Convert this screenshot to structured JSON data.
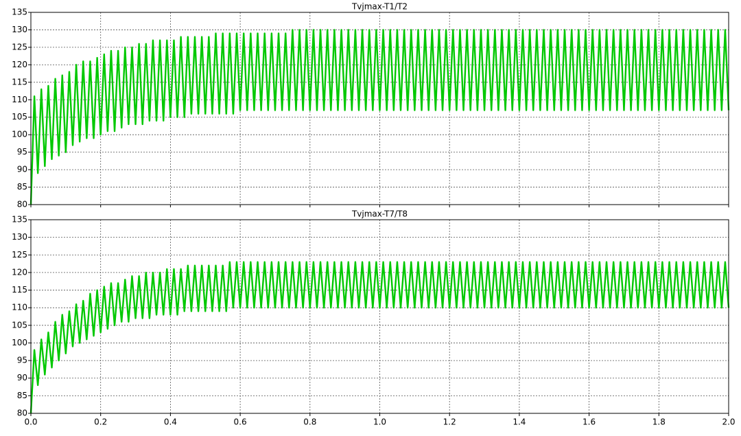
{
  "chart_data": [
    {
      "type": "line",
      "title": "Tvjmax-T1/T2",
      "color": "#00c800",
      "xlim": [
        0,
        2
      ],
      "ylim": [
        80,
        135
      ],
      "xticks": [
        0,
        0.2,
        0.4,
        0.6,
        0.8,
        1,
        1.2,
        1.4,
        1.6,
        1.8,
        2
      ],
      "yticks": [
        80,
        85,
        90,
        95,
        100,
        105,
        110,
        115,
        120,
        125,
        130,
        135
      ],
      "grid": true,
      "x": [
        0,
        0.01,
        0.02,
        0.03,
        0.04,
        0.05,
        0.06,
        0.07,
        0.08,
        0.09,
        0.1,
        0.11,
        0.12,
        0.13,
        0.14,
        0.15,
        0.16,
        0.17,
        0.18,
        0.19,
        0.2,
        0.21,
        0.22,
        0.23,
        0.24,
        0.25,
        0.26,
        0.27,
        0.28,
        0.29,
        0.3,
        0.31,
        0.32,
        0.33,
        0.34,
        0.35,
        0.36,
        0.37,
        0.38,
        0.39,
        0.4,
        0.41,
        0.42,
        0.43,
        0.44,
        0.45,
        0.46,
        0.47,
        0.48,
        0.49,
        0.5,
        0.51,
        0.52,
        0.53,
        0.54,
        0.55,
        0.56,
        0.57,
        0.58,
        0.59,
        0.6,
        0.61,
        0.62,
        0.63,
        0.64,
        0.65,
        0.66,
        0.67,
        0.68,
        0.69,
        0.7,
        0.71,
        0.72,
        0.73,
        0.74,
        0.75,
        0.76,
        0.77,
        0.78,
        0.79,
        0.8,
        0.81,
        0.82,
        0.83,
        0.84,
        0.85,
        0.86,
        0.87,
        0.88,
        0.89,
        0.9,
        0.91,
        0.92,
        0.93,
        0.94,
        0.95,
        0.96,
        0.97,
        0.98,
        0.99,
        1,
        1.01,
        1.02,
        1.03,
        1.04,
        1.05,
        1.06,
        1.07,
        1.08,
        1.09,
        1.1,
        1.11,
        1.12,
        1.13,
        1.14,
        1.15,
        1.16,
        1.17,
        1.18,
        1.19,
        1.2,
        1.21,
        1.22,
        1.23,
        1.24,
        1.25,
        1.26,
        1.27,
        1.28,
        1.29,
        1.3,
        1.31,
        1.32,
        1.33,
        1.34,
        1.35,
        1.36,
        1.37,
        1.38,
        1.39,
        1.4,
        1.41,
        1.42,
        1.43,
        1.44,
        1.45,
        1.46,
        1.47,
        1.48,
        1.49,
        1.5,
        1.51,
        1.52,
        1.53,
        1.54,
        1.55,
        1.56,
        1.57,
        1.58,
        1.59,
        1.6,
        1.61,
        1.62,
        1.63,
        1.64,
        1.65,
        1.66,
        1.67,
        1.68,
        1.69,
        1.7,
        1.71,
        1.72,
        1.73,
        1.74,
        1.75,
        1.76,
        1.77,
        1.78,
        1.79,
        1.8,
        1.81,
        1.82,
        1.83,
        1.84,
        1.85,
        1.86,
        1.87,
        1.88,
        1.89,
        1.9,
        1.91,
        1.92,
        1.93,
        1.94,
        1.95,
        1.96,
        1.97,
        1.98,
        1.99,
        2
      ],
      "values": [
        80,
        111,
        89,
        113,
        91,
        114,
        93,
        116,
        94,
        117,
        95,
        118,
        97,
        120,
        98,
        121,
        99,
        121,
        99,
        122,
        100,
        123,
        101,
        124,
        101,
        124,
        102,
        125,
        103,
        125,
        103,
        126,
        103,
        126,
        104,
        127,
        104,
        127,
        104,
        127,
        105,
        127,
        105,
        128,
        105,
        128,
        106,
        128,
        106,
        128,
        106,
        128,
        106,
        129,
        106,
        129,
        106,
        129,
        106,
        129,
        107,
        129,
        107,
        129,
        107,
        129,
        107,
        129,
        107,
        129,
        107,
        129,
        107,
        129,
        107,
        130,
        107,
        130,
        107,
        130,
        107,
        130,
        107,
        130,
        107,
        130,
        107,
        130,
        107,
        130,
        107,
        130,
        107,
        130,
        107,
        130,
        107,
        130,
        107,
        130,
        107,
        130,
        107,
        130,
        107,
        130,
        107,
        130,
        107,
        130,
        107,
        130,
        107,
        130,
        107,
        130,
        107,
        130,
        107,
        130,
        107,
        130,
        107,
        130,
        107,
        130,
        107,
        130,
        107,
        130,
        107,
        130,
        107,
        130,
        107,
        130,
        107,
        130,
        107,
        130,
        107,
        130,
        107,
        130,
        107,
        130,
        107,
        130,
        107,
        130,
        107,
        130,
        107,
        130,
        107,
        130,
        107,
        130,
        107,
        130,
        107,
        130,
        107,
        130,
        107,
        130,
        107,
        130,
        107,
        130,
        107,
        130,
        107,
        130,
        107,
        130,
        107,
        130,
        107,
        130,
        107,
        130,
        107,
        130,
        107,
        130,
        107,
        130,
        107,
        130,
        107,
        130,
        107,
        130,
        107,
        130,
        107,
        130,
        107,
        130,
        107
      ]
    },
    {
      "type": "line",
      "title": "Tvjmax-T7/T8",
      "color": "#00c800",
      "xlim": [
        0,
        2
      ],
      "ylim": [
        80,
        135
      ],
      "xticks": [
        {
          "value": 0,
          "label": "0.0"
        },
        0.2,
        0.4,
        0.6,
        0.8,
        {
          "value": 1,
          "label": "1.0"
        },
        1.2,
        1.4,
        1.6,
        1.8,
        {
          "value": 2,
          "label": "2.0"
        }
      ],
      "yticks": [
        80,
        85,
        90,
        95,
        100,
        105,
        110,
        115,
        120,
        125,
        130,
        135
      ],
      "grid": true,
      "x": [
        0,
        0.01,
        0.02,
        0.03,
        0.04,
        0.05,
        0.06,
        0.07,
        0.08,
        0.09,
        0.1,
        0.11,
        0.12,
        0.13,
        0.14,
        0.15,
        0.16,
        0.17,
        0.18,
        0.19,
        0.2,
        0.21,
        0.22,
        0.23,
        0.24,
        0.25,
        0.26,
        0.27,
        0.28,
        0.29,
        0.3,
        0.31,
        0.32,
        0.33,
        0.34,
        0.35,
        0.36,
        0.37,
        0.38,
        0.39,
        0.4,
        0.41,
        0.42,
        0.43,
        0.44,
        0.45,
        0.46,
        0.47,
        0.48,
        0.49,
        0.5,
        0.51,
        0.52,
        0.53,
        0.54,
        0.55,
        0.56,
        0.57,
        0.58,
        0.59,
        0.6,
        0.61,
        0.62,
        0.63,
        0.64,
        0.65,
        0.66,
        0.67,
        0.68,
        0.69,
        0.7,
        0.71,
        0.72,
        0.73,
        0.74,
        0.75,
        0.76,
        0.77,
        0.78,
        0.79,
        0.8,
        0.81,
        0.82,
        0.83,
        0.84,
        0.85,
        0.86,
        0.87,
        0.88,
        0.89,
        0.9,
        0.91,
        0.92,
        0.93,
        0.94,
        0.95,
        0.96,
        0.97,
        0.98,
        0.99,
        1,
        1.01,
        1.02,
        1.03,
        1.04,
        1.05,
        1.06,
        1.07,
        1.08,
        1.09,
        1.1,
        1.11,
        1.12,
        1.13,
        1.14,
        1.15,
        1.16,
        1.17,
        1.18,
        1.19,
        1.2,
        1.21,
        1.22,
        1.23,
        1.24,
        1.25,
        1.26,
        1.27,
        1.28,
        1.29,
        1.3,
        1.31,
        1.32,
        1.33,
        1.34,
        1.35,
        1.36,
        1.37,
        1.38,
        1.39,
        1.4,
        1.41,
        1.42,
        1.43,
        1.44,
        1.45,
        1.46,
        1.47,
        1.48,
        1.49,
        1.5,
        1.51,
        1.52,
        1.53,
        1.54,
        1.55,
        1.56,
        1.57,
        1.58,
        1.59,
        1.6,
        1.61,
        1.62,
        1.63,
        1.64,
        1.65,
        1.66,
        1.67,
        1.68,
        1.69,
        1.7,
        1.71,
        1.72,
        1.73,
        1.74,
        1.75,
        1.76,
        1.77,
        1.78,
        1.79,
        1.8,
        1.81,
        1.82,
        1.83,
        1.84,
        1.85,
        1.86,
        1.87,
        1.88,
        1.89,
        1.9,
        1.91,
        1.92,
        1.93,
        1.94,
        1.95,
        1.96,
        1.97,
        1.98,
        1.99,
        2
      ],
      "values": [
        80,
        98,
        88,
        101,
        91,
        103,
        93,
        106,
        95,
        108,
        97,
        109,
        99,
        111,
        100,
        112,
        101,
        114,
        102,
        115,
        103,
        116,
        104,
        117,
        105,
        117,
        106,
        118,
        106,
        119,
        107,
        119,
        107,
        120,
        107,
        120,
        108,
        120,
        108,
        121,
        108,
        121,
        108,
        121,
        109,
        122,
        109,
        122,
        109,
        122,
        109,
        122,
        109,
        122,
        109,
        122,
        109,
        123,
        110,
        123,
        110,
        123,
        110,
        123,
        110,
        123,
        110,
        123,
        110,
        123,
        110,
        123,
        110,
        123,
        110,
        123,
        110,
        123,
        110,
        123,
        110,
        123,
        110,
        123,
        110,
        123,
        110,
        123,
        110,
        123,
        110,
        123,
        110,
        123,
        110,
        123,
        110,
        123,
        110,
        123,
        110,
        123,
        110,
        123,
        110,
        123,
        110,
        123,
        110,
        123,
        110,
        123,
        110,
        123,
        110,
        123,
        110,
        123,
        110,
        123,
        110,
        123,
        110,
        123,
        110,
        123,
        110,
        123,
        110,
        123,
        110,
        123,
        110,
        123,
        110,
        123,
        110,
        123,
        110,
        123,
        110,
        123,
        110,
        123,
        110,
        123,
        110,
        123,
        110,
        123,
        110,
        123,
        110,
        123,
        110,
        123,
        110,
        123,
        110,
        123,
        110,
        123,
        110,
        123,
        110,
        123,
        110,
        123,
        110,
        123,
        110,
        123,
        110,
        123,
        110,
        123,
        110,
        123,
        110,
        123,
        110,
        123,
        110,
        123,
        110,
        123,
        110,
        123,
        110,
        123,
        110,
        123,
        110,
        123,
        110,
        123,
        110,
        123,
        110,
        123,
        110
      ]
    }
  ]
}
